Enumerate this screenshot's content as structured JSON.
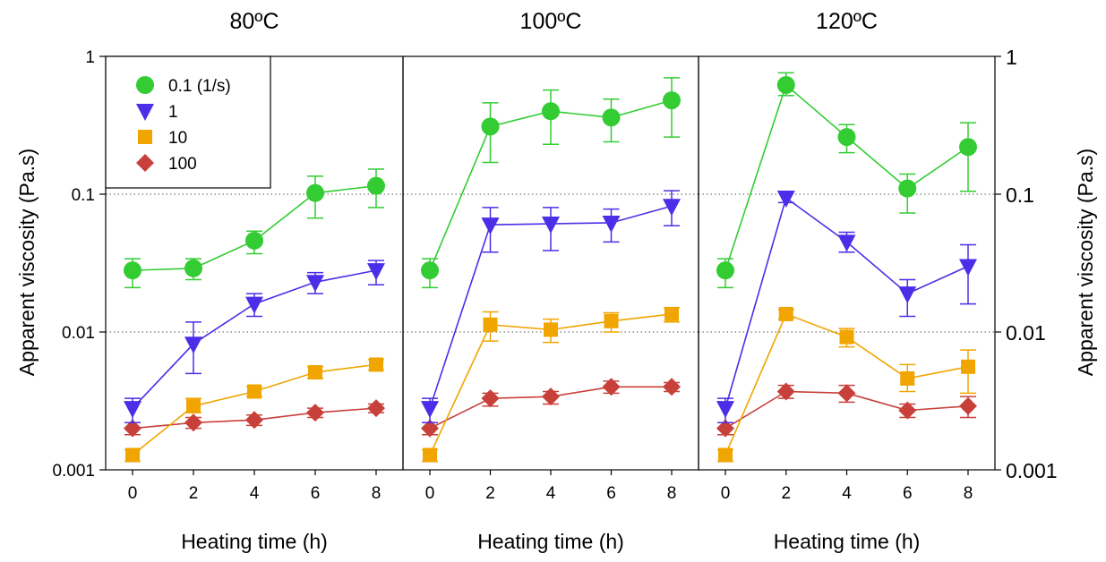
{
  "chart_data": {
    "type": "scatter",
    "panels": [
      {
        "title": "80ºC",
        "x": [
          0,
          2,
          4,
          6,
          8
        ],
        "series": [
          {
            "name": "0.1 (1/s)",
            "marker": "circle",
            "color": "#33cc33",
            "values": [
              0.028,
              0.029,
              0.046,
              0.102,
              0.115
            ],
            "err_low": [
              0.021,
              0.024,
              0.037,
              0.067,
              0.08
            ],
            "err_high": [
              0.034,
              0.034,
              0.054,
              0.135,
              0.152
            ]
          },
          {
            "name": "1",
            "marker": "triangle-down",
            "color": "#4a2ee8",
            "values": [
              0.0028,
              0.0082,
              0.016,
              0.023,
              0.028
            ],
            "err_low": [
              0.0022,
              0.005,
              0.013,
              0.019,
              0.022
            ],
            "err_high": [
              0.0033,
              0.0118,
              0.019,
              0.027,
              0.033
            ]
          },
          {
            "name": "10",
            "marker": "square",
            "color": "#f0a500",
            "values": [
              0.00128,
              0.0029,
              0.0037,
              0.0051,
              0.0058
            ],
            "err_low": [
              0.00115,
              0.0026,
              0.0034,
              0.0046,
              0.0053
            ],
            "err_high": [
              0.0014,
              0.0033,
              0.004,
              0.0056,
              0.0063
            ]
          },
          {
            "name": "100",
            "marker": "diamond",
            "color": "#c8403a",
            "values": [
              0.002,
              0.0022,
              0.0023,
              0.0026,
              0.0028
            ],
            "err_low": [
              0.0018,
              0.002,
              0.0021,
              0.0024,
              0.0026
            ],
            "err_high": [
              0.0022,
              0.0024,
              0.0025,
              0.0028,
              0.003
            ]
          }
        ]
      },
      {
        "title": "100ºC",
        "x": [
          0,
          2,
          4,
          6,
          8
        ],
        "series": [
          {
            "name": "0.1 (1/s)",
            "marker": "circle",
            "color": "#33cc33",
            "values": [
              0.028,
              0.31,
              0.4,
              0.36,
              0.48
            ],
            "err_low": [
              0.021,
              0.17,
              0.23,
              0.24,
              0.26
            ],
            "err_high": [
              0.034,
              0.46,
              0.57,
              0.49,
              0.7
            ]
          },
          {
            "name": "1",
            "marker": "triangle-down",
            "color": "#4a2ee8",
            "values": [
              0.0028,
              0.06,
              0.061,
              0.062,
              0.082
            ],
            "err_low": [
              0.0022,
              0.038,
              0.039,
              0.045,
              0.059
            ],
            "err_high": [
              0.0033,
              0.08,
              0.08,
              0.078,
              0.106
            ]
          },
          {
            "name": "10",
            "marker": "square",
            "color": "#f0a500",
            "values": [
              0.00128,
              0.0113,
              0.0104,
              0.012,
              0.0135
            ],
            "err_low": [
              0.00115,
              0.0086,
              0.0084,
              0.01,
              0.0118
            ],
            "err_high": [
              0.0014,
              0.014,
              0.0124,
              0.0138,
              0.015
            ]
          },
          {
            "name": "100",
            "marker": "diamond",
            "color": "#c8403a",
            "values": [
              0.002,
              0.0033,
              0.0034,
              0.004,
              0.004
            ],
            "err_low": [
              0.0018,
              0.0029,
              0.003,
              0.0036,
              0.0037
            ],
            "err_high": [
              0.0022,
              0.0036,
              0.0037,
              0.0044,
              0.0043
            ]
          }
        ]
      },
      {
        "title": "120ºC",
        "x": [
          0,
          2,
          4,
          6,
          8
        ],
        "series": [
          {
            "name": "0.1 (1/s)",
            "marker": "circle",
            "color": "#33cc33",
            "values": [
              0.028,
              0.62,
              0.26,
              0.11,
              0.22
            ],
            "err_low": [
              0.021,
              0.52,
              0.2,
              0.073,
              0.105
            ],
            "err_high": [
              0.034,
              0.76,
              0.32,
              0.14,
              0.33
            ]
          },
          {
            "name": "1",
            "marker": "triangle-down",
            "color": "#4a2ee8",
            "values": [
              0.0028,
              0.094,
              0.045,
              0.019,
              0.03
            ],
            "err_low": [
              0.0022,
              0.087,
              0.038,
              0.013,
              0.016
            ],
            "err_high": [
              0.0033,
              0.105,
              0.053,
              0.024,
              0.043
            ]
          },
          {
            "name": "10",
            "marker": "square",
            "color": "#f0a500",
            "values": [
              0.00128,
              0.0135,
              0.0092,
              0.0046,
              0.0056
            ],
            "err_low": [
              0.00115,
              0.0125,
              0.0078,
              0.0037,
              0.0036
            ],
            "err_high": [
              0.0014,
              0.0145,
              0.0106,
              0.0058,
              0.0074
            ]
          },
          {
            "name": "100",
            "marker": "diamond",
            "color": "#c8403a",
            "values": [
              0.002,
              0.0037,
              0.0036,
              0.0027,
              0.0029
            ],
            "err_low": [
              0.0018,
              0.0033,
              0.0031,
              0.0024,
              0.0024
            ],
            "err_high": [
              0.0022,
              0.0041,
              0.0041,
              0.003,
              0.0034
            ]
          }
        ]
      }
    ],
    "xlabel": "Heating time (h)",
    "ylabel_left": "Apparent viscosity (Pa.s)",
    "ylabel_right": "Apparent viscosity (Pa.s)",
    "yscale": "log",
    "ylim": [
      0.001,
      1
    ],
    "xlim": [
      -1,
      9
    ],
    "yticks": [
      0.001,
      0.01,
      0.1,
      1
    ],
    "ytick_labels_left": [
      "0.001",
      "0.01",
      "0.1",
      "1"
    ],
    "ytick_labels_right": [
      "0.001",
      "0.01",
      "0.1",
      "1"
    ],
    "xticks": [
      0,
      2,
      4,
      6,
      8
    ],
    "xtick_labels": [
      "0",
      "2",
      "4",
      "6",
      "8"
    ],
    "reference_lines": [
      0.01,
      0.1
    ],
    "legend_placement": "top-left of first panel"
  }
}
